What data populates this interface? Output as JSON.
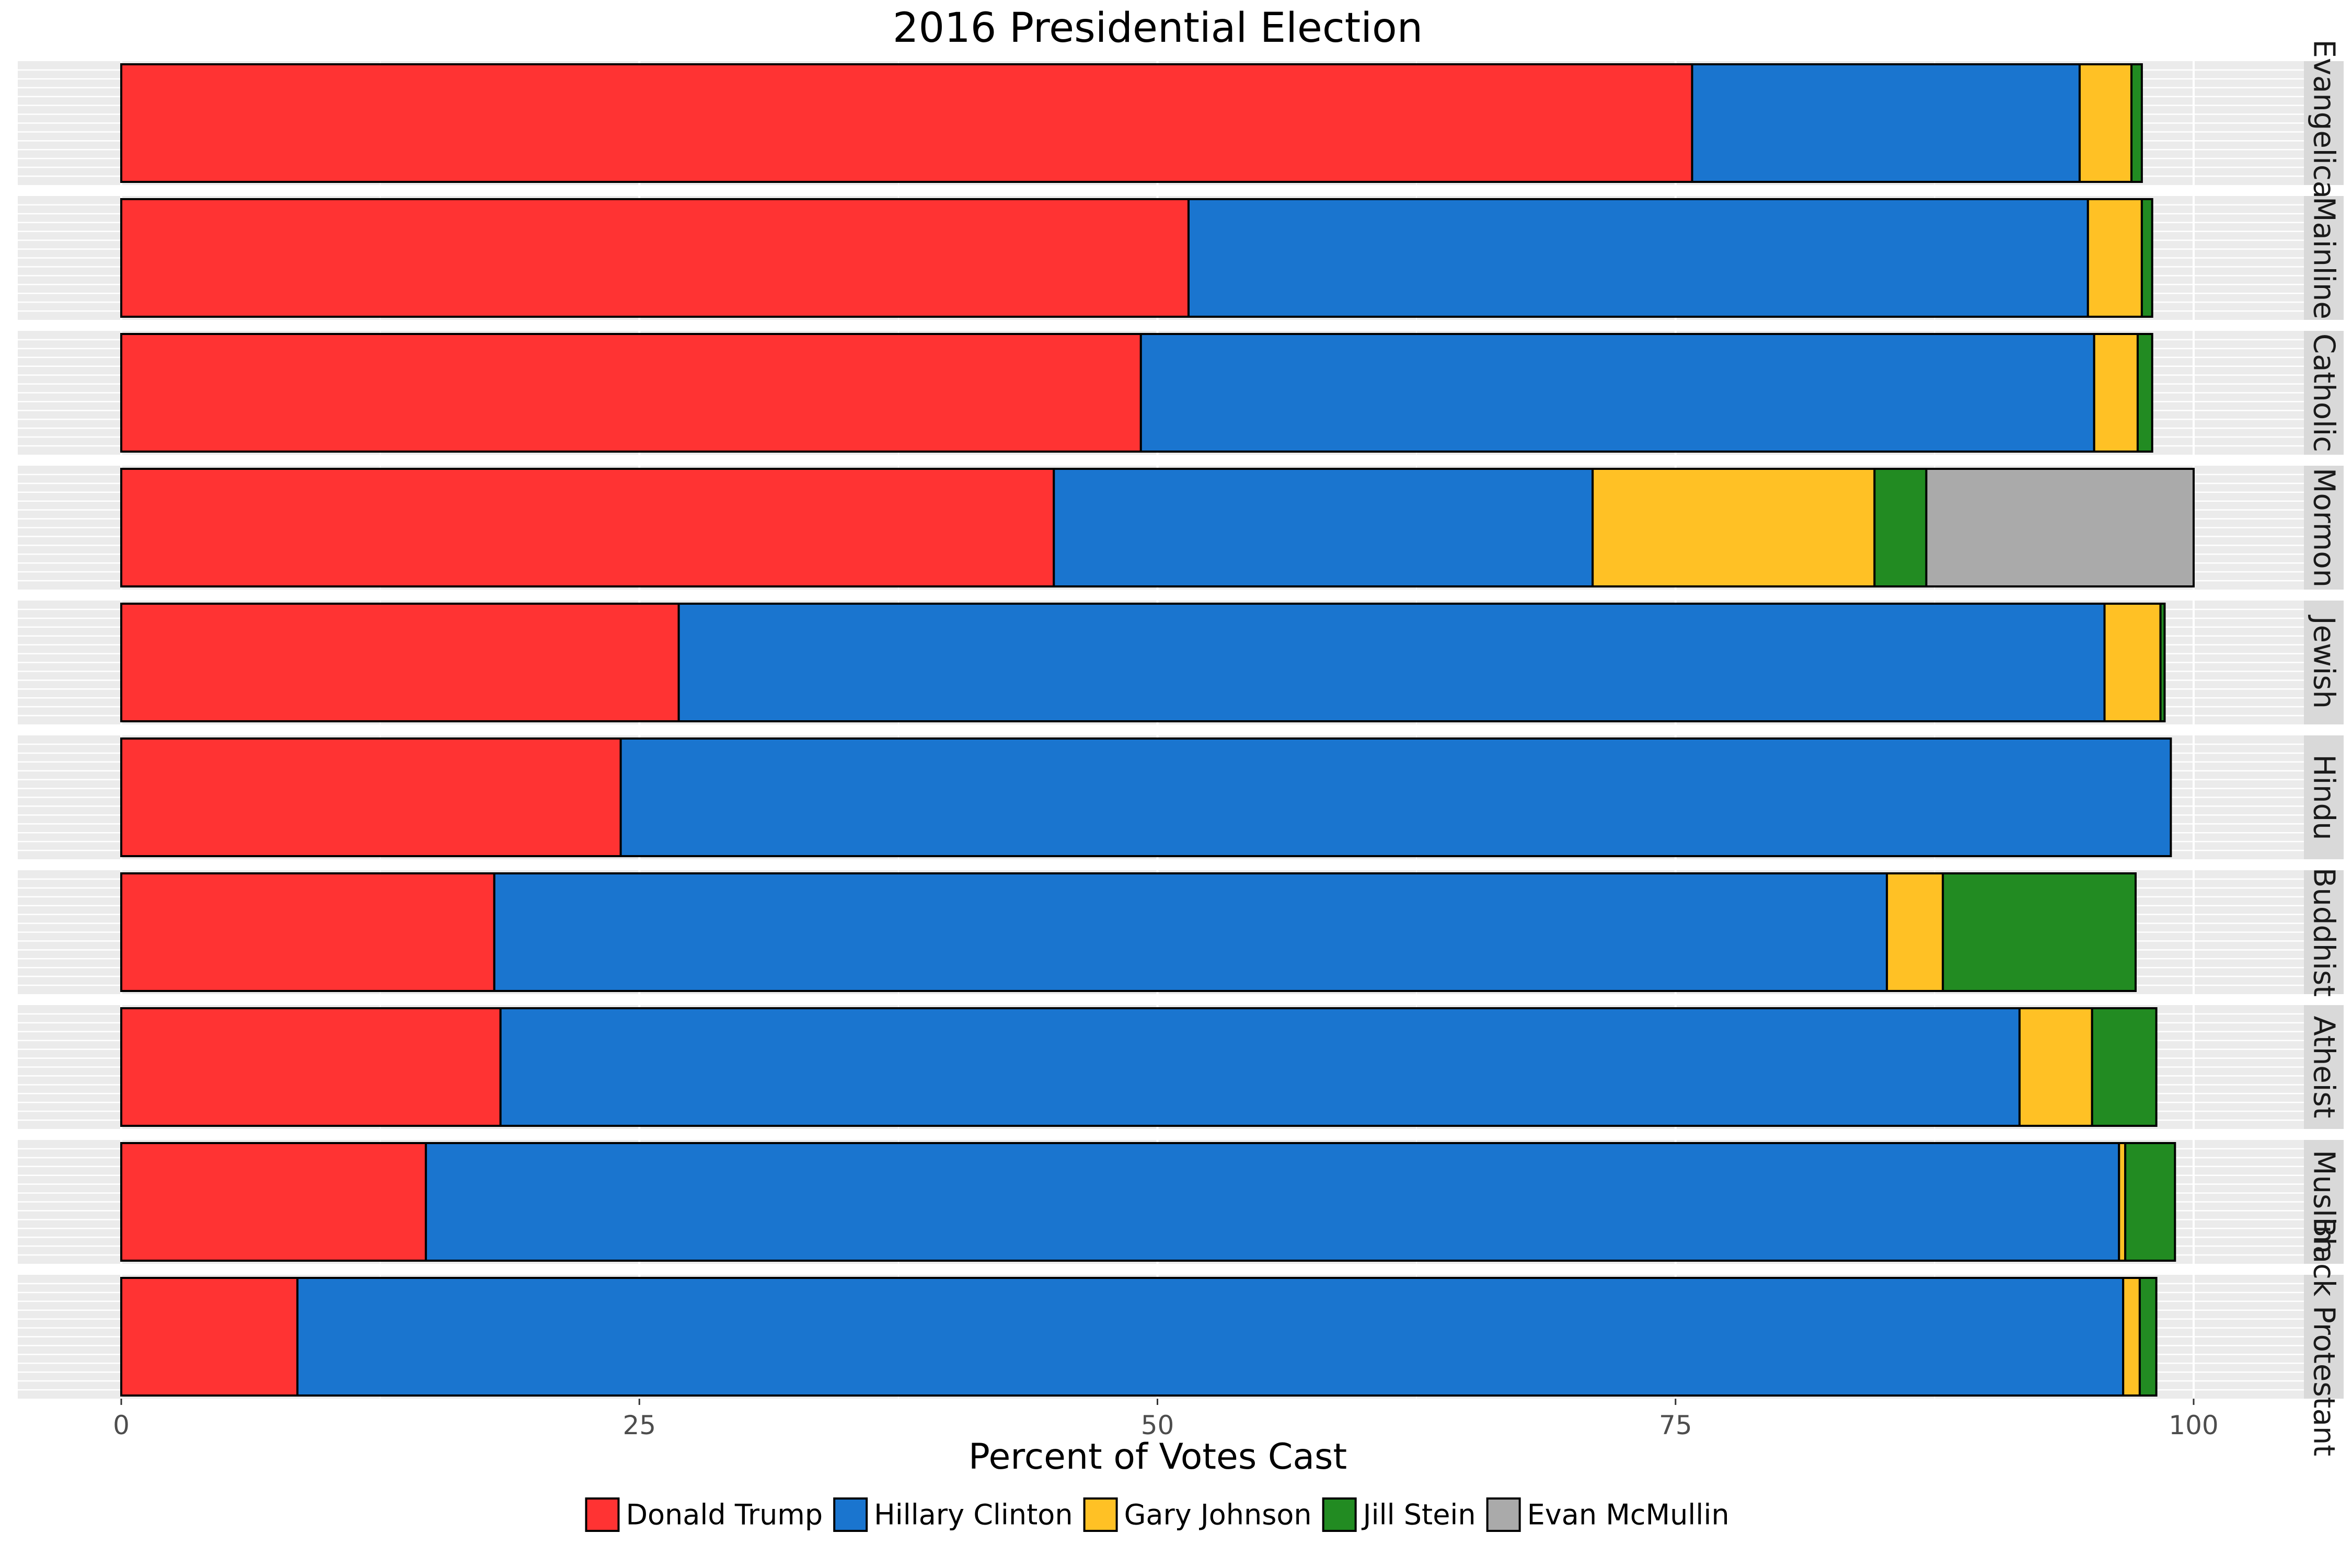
{
  "chart_data": {
    "type": "bar",
    "orientation": "horizontal",
    "stacked": true,
    "faceted": true,
    "title": "2016 Presidential Election",
    "xlabel": "Percent of Votes Cast",
    "xlim": [
      0,
      100
    ],
    "x_ticks": [
      0,
      25,
      50,
      75,
      100
    ],
    "x_tick_labels": [
      "0",
      "25",
      "50",
      "75",
      "100"
    ],
    "grid": true,
    "legend_position": "bottom",
    "series": [
      {
        "name": "Donald Trump",
        "color": "#ff3333"
      },
      {
        "name": "Hillary Clinton",
        "color": "#1a75cf"
      },
      {
        "name": "Gary Johnson",
        "color": "#ffc125"
      },
      {
        "name": "Jill Stein",
        "color": "#228b22"
      },
      {
        "name": "Evan McMullin",
        "color": "#aaaaaa"
      }
    ],
    "facets": [
      {
        "label": "Evangelical",
        "values": [
          75.8,
          18.7,
          2.5,
          0.5,
          0
        ]
      },
      {
        "label": "Mainline",
        "values": [
          51.5,
          43.4,
          2.6,
          0.5,
          0
        ]
      },
      {
        "label": "Catholic",
        "values": [
          49.2,
          46.0,
          2.1,
          0.7,
          0
        ]
      },
      {
        "label": "Mormon",
        "values": [
          45.0,
          26.0,
          13.6,
          2.5,
          12.9
        ]
      },
      {
        "label": "Jewish",
        "values": [
          26.9,
          68.8,
          2.7,
          0.2,
          0
        ]
      },
      {
        "label": "Hindu",
        "values": [
          24.1,
          74.8,
          0,
          0,
          0
        ]
      },
      {
        "label": "Buddhist",
        "values": [
          18.0,
          67.2,
          2.7,
          9.3,
          0
        ]
      },
      {
        "label": "Atheist",
        "values": [
          18.3,
          73.3,
          3.5,
          3.1,
          0
        ]
      },
      {
        "label": "Muslim",
        "values": [
          14.7,
          81.7,
          0.3,
          2.4,
          0
        ]
      },
      {
        "label": "Black Protestant",
        "values": [
          8.5,
          88.1,
          0.8,
          0.8,
          0
        ]
      }
    ]
  }
}
